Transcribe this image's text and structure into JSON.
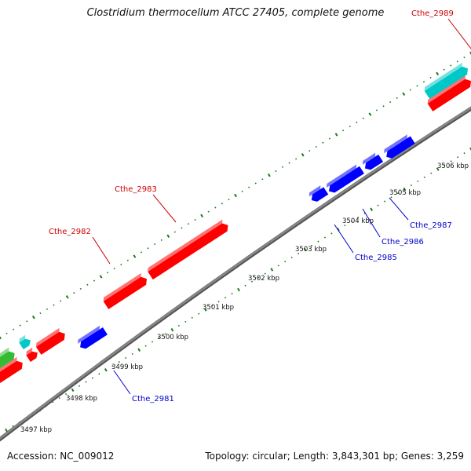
{
  "title": "Clostridium thermocellum ATCC 27405, complete genome",
  "footer": {
    "accession": "Accession: NC_009012",
    "summary": "Topology: circular; Length: 3,843,301 bp; Genes: 3,259"
  },
  "colors": {
    "forward_gene": "#ff0000",
    "reverse_gene": "#0000ff",
    "rna_gene": "#00c8c8",
    "other_gene": "#33bb33",
    "backbone": "#888888",
    "tick": "#1a7a1a",
    "forward_label": "#cc0000",
    "reverse_label": "#0000cc"
  },
  "scale": {
    "unit": "kbp",
    "ticks": [
      {
        "label": "3497 kbp"
      },
      {
        "label": "3498 kbp"
      },
      {
        "label": "3499 kbp"
      },
      {
        "label": "3500 kbp"
      },
      {
        "label": "3501 kbp"
      },
      {
        "label": "3502 kbp"
      },
      {
        "label": "3503 kbp"
      },
      {
        "label": "3504 kbp"
      },
      {
        "label": "3505 kbp"
      },
      {
        "label": "3506 kbp"
      }
    ]
  },
  "gene_labels": [
    {
      "name": "Cthe_2983",
      "strand": "forward"
    },
    {
      "name": "Cthe_2982",
      "strand": "forward"
    },
    {
      "name": "Cthe_2989",
      "strand": "forward"
    },
    {
      "name": "Cthe_2987",
      "strand": "reverse"
    },
    {
      "name": "Cthe_2986",
      "strand": "reverse"
    },
    {
      "name": "Cthe_2985",
      "strand": "reverse"
    },
    {
      "name": "Cthe_2981",
      "strand": "reverse"
    }
  ]
}
